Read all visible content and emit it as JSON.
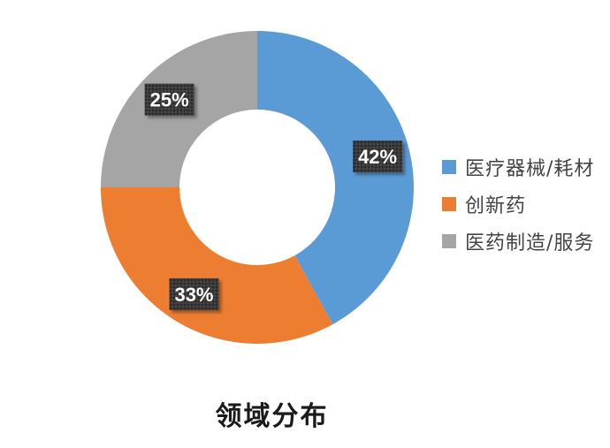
{
  "chart_data": {
    "type": "pie",
    "variant": "donut",
    "title": "领域分布",
    "slices": [
      {
        "label": "医疗器械/耗材",
        "value": 42,
        "display": "42%",
        "color": "#5b9bd5"
      },
      {
        "label": "创新药",
        "value": 33,
        "display": "33%",
        "color": "#ed7d31"
      },
      {
        "label": "医药制造/服务",
        "value": 25,
        "display": "25%",
        "color": "#a5a5a5"
      }
    ],
    "legend_position": "right",
    "data_label_style": "dark-box-white-text"
  }
}
